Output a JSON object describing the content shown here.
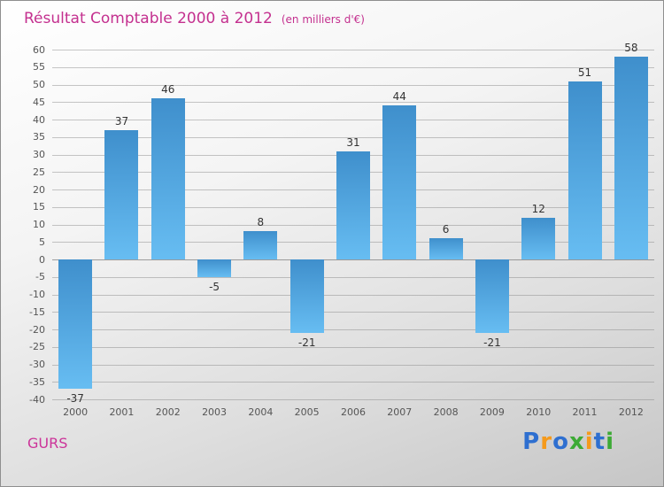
{
  "title": {
    "text": "Résultat Comptable 2000 à 2012",
    "subtitle": "(en milliers d'€)"
  },
  "chart_data": {
    "type": "bar",
    "title": "Résultat Comptable 2000 à 2012",
    "subtitle": "(en milliers d'€)",
    "categories": [
      "2000",
      "2001",
      "2002",
      "2003",
      "2004",
      "2005",
      "2006",
      "2007",
      "2008",
      "2009",
      "2010",
      "2011",
      "2012"
    ],
    "values": [
      -37,
      37,
      46,
      -5,
      8,
      -21,
      31,
      44,
      6,
      -21,
      12,
      51,
      58
    ],
    "ylim": [
      -40,
      60
    ],
    "ytick_step": 5,
    "grid": true,
    "legend": "none",
    "xlabel": "",
    "ylabel": "",
    "bar_color_top": "#3f8fcc",
    "bar_color_bottom": "#67bdf2"
  },
  "footer": {
    "company": "GURS",
    "logo_letters": [
      {
        "ch": "P",
        "color": "#2e6fd0"
      },
      {
        "ch": "r",
        "color": "#f59a1c"
      },
      {
        "ch": "o",
        "color": "#2e6fd0"
      },
      {
        "ch": "x",
        "color": "#3daa35"
      },
      {
        "ch": "i",
        "color": "#f59a1c"
      },
      {
        "ch": "t",
        "color": "#2e6fd0"
      },
      {
        "ch": "i",
        "color": "#3daa35"
      }
    ]
  },
  "colors": {
    "accent_title": "#c4308f",
    "tick_text": "#555555",
    "value_text": "#333333"
  }
}
